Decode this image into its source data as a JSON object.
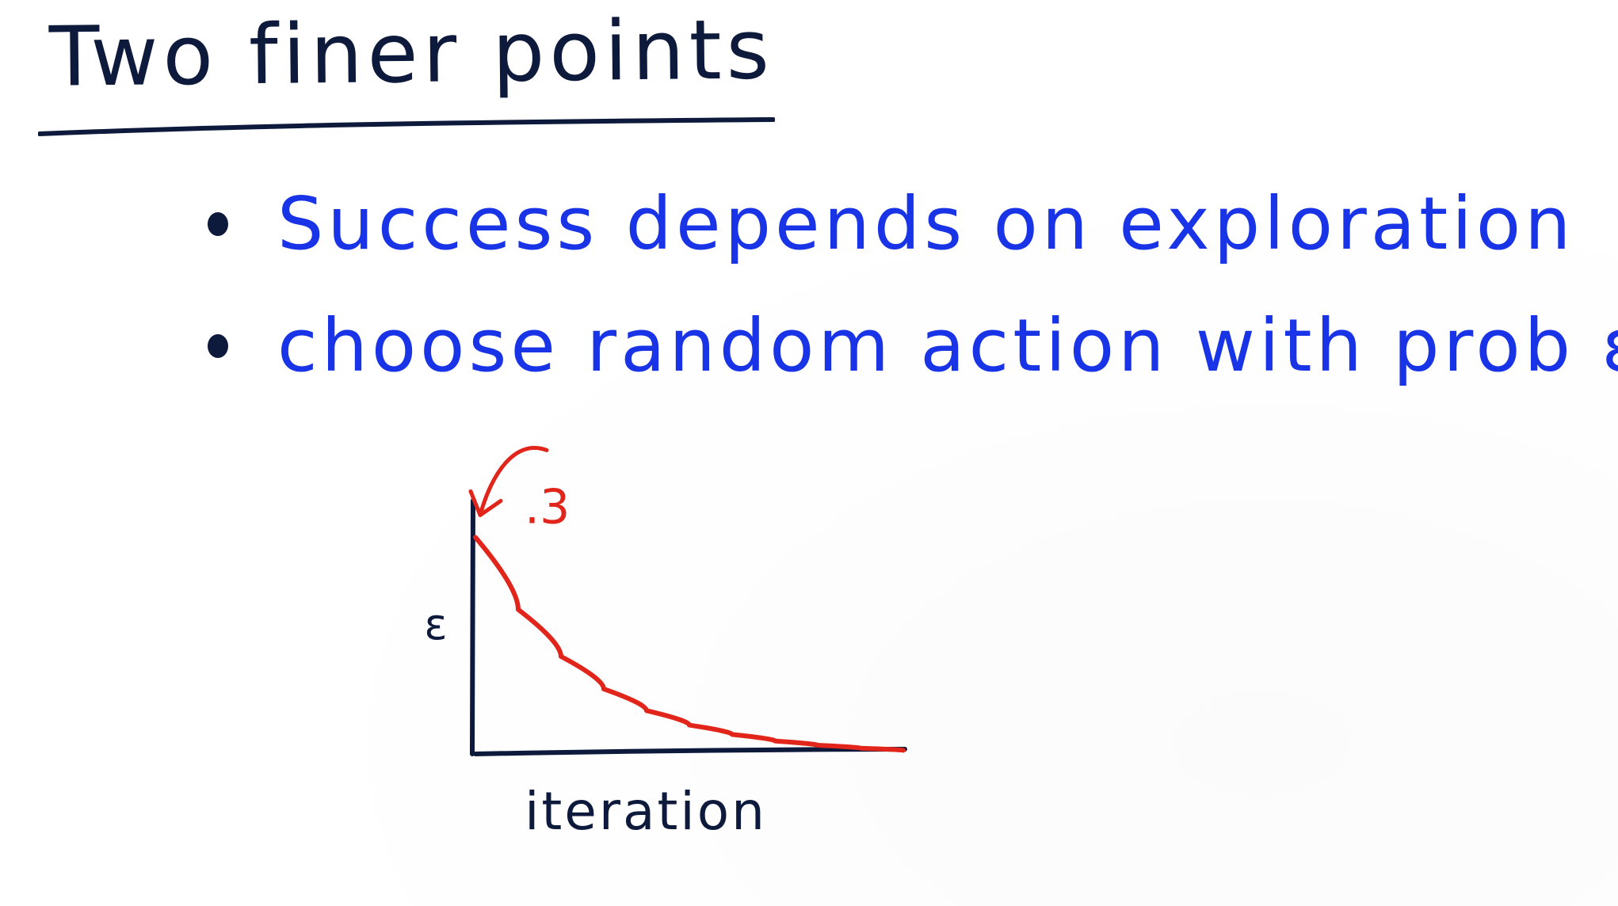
{
  "title": "Two finer points",
  "bullets": [
    "Success depends on exploration",
    "choose random action with prob ε"
  ],
  "colors": {
    "title": "#0e1a3c",
    "blue": "#1834e6",
    "red": "#e1251b",
    "axis": "#0e1a3c"
  },
  "chart_data": {
    "type": "line",
    "title": "",
    "xlabel": "iteration",
    "ylabel": "ε",
    "annotation": ".3",
    "series": [
      {
        "name": "",
        "color": "#e1251b",
        "points": [
          [
            0,
            0.3
          ],
          [
            1,
            0.2
          ],
          [
            2,
            0.135
          ],
          [
            3,
            0.09
          ],
          [
            4,
            0.06
          ],
          [
            5,
            0.04
          ],
          [
            6,
            0.027
          ],
          [
            7,
            0.018
          ],
          [
            8,
            0.012
          ],
          [
            9,
            0.008
          ],
          [
            10,
            0.005
          ]
        ]
      }
    ],
    "xlim": [
      0,
      10
    ],
    "ylim": [
      0,
      0.34
    ],
    "grid": false
  }
}
